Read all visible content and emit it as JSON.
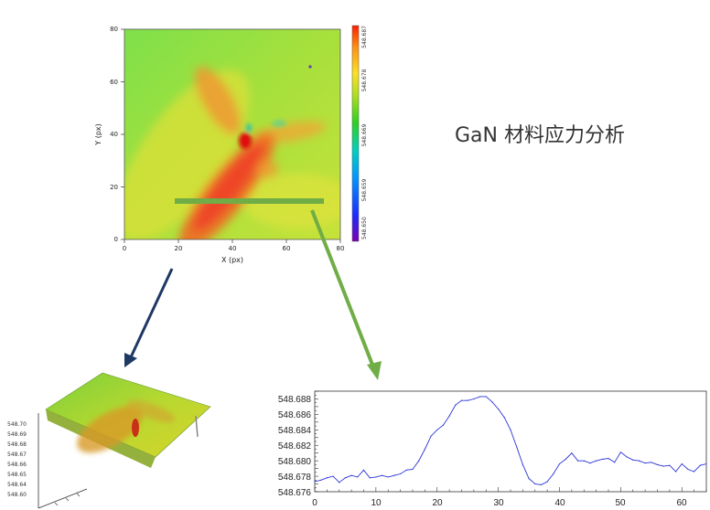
{
  "title": "GaN 材料应力分析",
  "colors": {
    "arrow_navy": "#1f3864",
    "arrow_green": "#70ad47",
    "line_series": "#2a34d8",
    "colorbar": [
      "#7a00b0",
      "#1c2cff",
      "#0099ff",
      "#00d0c0",
      "#30d020",
      "#b0e020",
      "#ffe020",
      "#ff9010",
      "#ff2000"
    ]
  },
  "chart_data": [
    {
      "type": "heatmap",
      "title": "",
      "xlabel": "X (px)",
      "ylabel": "Y (px)",
      "xlim": [
        0,
        80
      ],
      "ylim": [
        0,
        80
      ],
      "x_ticks": [
        "0",
        "20",
        "40",
        "60",
        "80"
      ],
      "y_ticks": [
        "0",
        "20",
        "40",
        "60",
        "80"
      ],
      "colorbar_ticks": [
        "548.650",
        "548.659",
        "548.669",
        "548.678",
        "548.687"
      ],
      "colorbar_range": [
        548.65,
        548.687
      ],
      "profile_line": {
        "x_start": 19,
        "x_end": 74,
        "y": 15
      },
      "features": [
        {
          "desc": "red stress band",
          "from": [
            20,
            5
          ],
          "to": [
            55,
            45
          ]
        },
        {
          "desc": "upper-left arm",
          "from": [
            30,
            65
          ],
          "to": [
            45,
            45
          ]
        },
        {
          "desc": "right arm",
          "from": [
            50,
            42
          ],
          "to": [
            75,
            47
          ]
        },
        {
          "desc": "central hotspot",
          "at": [
            45,
            38
          ]
        }
      ]
    },
    {
      "type": "surface",
      "title": "",
      "z_ticks": [
        "548.70",
        "548.69",
        "548.68",
        "548.67",
        "548.66",
        "548.65",
        "548.64",
        "548.60"
      ]
    },
    {
      "type": "line",
      "title": "",
      "xlabel": "",
      "ylabel": "",
      "xlim": [
        0,
        64
      ],
      "ylim": [
        548.675,
        548.688
      ],
      "x_ticks": [
        "0",
        "10",
        "20",
        "30",
        "40",
        "50",
        "60"
      ],
      "y_ticks": [
        "548.676",
        "548.678",
        "548.680",
        "548.682",
        "548.684",
        "548.686",
        "548.688"
      ],
      "x": [
        0,
        1,
        2,
        3,
        4,
        5,
        6,
        7,
        8,
        9,
        10,
        11,
        12,
        13,
        14,
        15,
        16,
        17,
        18,
        19,
        20,
        21,
        22,
        23,
        24,
        25,
        26,
        27,
        28,
        29,
        30,
        31,
        32,
        33,
        34,
        35,
        36,
        37,
        38,
        39,
        40,
        41,
        42,
        43,
        44,
        45,
        46,
        47,
        48,
        49,
        50,
        51,
        52,
        53,
        54,
        55,
        56,
        57,
        58,
        59,
        60,
        61,
        62,
        63,
        64
      ],
      "values": [
        548.6763,
        548.6765,
        548.6768,
        548.677,
        548.6762,
        548.6768,
        548.6771,
        548.6769,
        548.6778,
        548.6768,
        548.6769,
        548.6771,
        548.6769,
        548.6771,
        548.6773,
        548.6778,
        548.6779,
        548.679,
        548.6805,
        548.6822,
        548.683,
        548.6836,
        548.6848,
        548.6862,
        548.6868,
        548.6868,
        548.687,
        548.6873,
        548.6873,
        548.6866,
        548.6857,
        548.6846,
        548.683,
        548.6808,
        548.6785,
        548.6767,
        548.676,
        548.6759,
        548.6763,
        548.6773,
        548.6786,
        548.6792,
        548.68,
        548.679,
        548.679,
        548.6787,
        548.679,
        548.6792,
        548.6793,
        548.6788,
        548.6801,
        548.6795,
        548.6791,
        548.679,
        548.6787,
        548.6788,
        548.6785,
        548.6783,
        548.6784,
        548.6776,
        548.6786,
        548.6779,
        548.6776,
        548.6784,
        548.6786
      ]
    }
  ]
}
